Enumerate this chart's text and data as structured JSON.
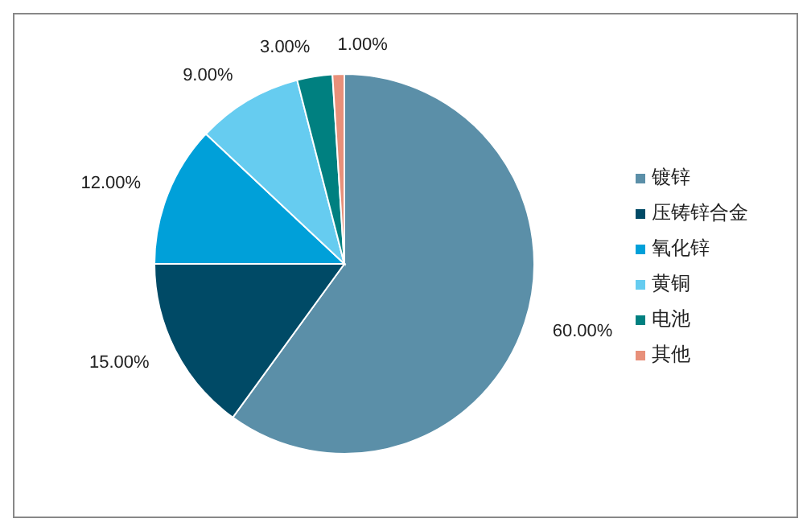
{
  "chart_data": {
    "type": "pie",
    "categories": [
      "镀锌",
      "压铸锌合金",
      "氧化锌",
      "黄铜",
      "电池",
      "其他"
    ],
    "values": [
      60,
      15,
      12,
      9,
      3,
      1
    ],
    "colors": [
      "#5b8fa8",
      "#004a66",
      "#00a0d9",
      "#66ccf0",
      "#008080",
      "#e8907a"
    ],
    "value_labels": [
      "60.00%",
      "15.00%",
      "12.00%",
      "9.00%",
      "3.00%",
      "1.00%"
    ],
    "legend": "right"
  }
}
